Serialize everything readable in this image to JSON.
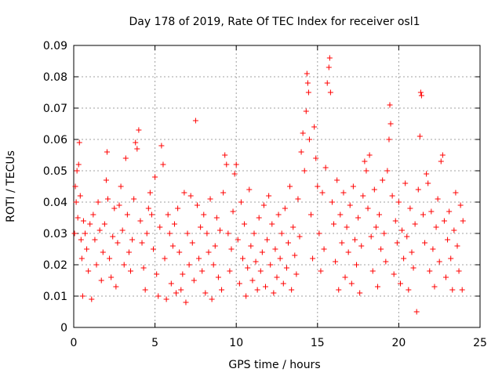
{
  "chart_data": {
    "type": "scatter",
    "title": "Day 178 of 2019, Rate Of TEC Index for receiver osl1",
    "xlabel": "GPS time / hours",
    "ylabel": "ROTI / TECUs",
    "xlim": [
      0,
      25
    ],
    "ylim": [
      0,
      0.09
    ],
    "xticks": [
      0,
      5,
      10,
      15,
      20,
      25
    ],
    "yticks": [
      0,
      0.01,
      0.02,
      0.03,
      0.04,
      0.05,
      0.06,
      0.07,
      0.08,
      0.09
    ],
    "xtick_labels": [
      "0",
      "5",
      "10",
      "15",
      "20",
      "25"
    ],
    "ytick_labels": [
      "0",
      "0.01",
      "0.02",
      "0.03",
      "0.04",
      "0.05",
      "0.06",
      "0.07",
      "0.08",
      "0.09"
    ],
    "grid": true,
    "marker": "+",
    "color": "#ff0000",
    "series": [
      {
        "points": [
          [
            0.05,
            0.03
          ],
          [
            0.1,
            0.045
          ],
          [
            0.15,
            0.04
          ],
          [
            0.2,
            0.05
          ],
          [
            0.25,
            0.035
          ],
          [
            0.3,
            0.052
          ],
          [
            0.35,
            0.059
          ],
          [
            0.4,
            0.042
          ],
          [
            0.45,
            0.028
          ],
          [
            0.5,
            0.022
          ],
          [
            0.55,
            0.01
          ],
          [
            0.6,
            0.034
          ],
          [
            0.7,
            0.03
          ],
          [
            0.8,
            0.025
          ],
          [
            0.9,
            0.018
          ],
          [
            1.0,
            0.033
          ],
          [
            1.1,
            0.009
          ],
          [
            1.2,
            0.036
          ],
          [
            1.3,
            0.028
          ],
          [
            1.4,
            0.02
          ],
          [
            1.5,
            0.04
          ],
          [
            1.6,
            0.031
          ],
          [
            1.7,
            0.015
          ],
          [
            1.8,
            0.024
          ],
          [
            1.9,
            0.033
          ],
          [
            2.0,
            0.047
          ],
          [
            2.05,
            0.056
          ],
          [
            2.1,
            0.041
          ],
          [
            2.2,
            0.022
          ],
          [
            2.3,
            0.016
          ],
          [
            2.4,
            0.029
          ],
          [
            2.5,
            0.038
          ],
          [
            2.6,
            0.013
          ],
          [
            2.7,
            0.027
          ],
          [
            2.8,
            0.039
          ],
          [
            2.9,
            0.045
          ],
          [
            3.0,
            0.031
          ],
          [
            3.1,
            0.02
          ],
          [
            3.2,
            0.054
          ],
          [
            3.3,
            0.036
          ],
          [
            3.4,
            0.024
          ],
          [
            3.5,
            0.018
          ],
          [
            3.6,
            0.028
          ],
          [
            3.7,
            0.041
          ],
          [
            3.8,
            0.059
          ],
          [
            3.9,
            0.057
          ],
          [
            4.0,
            0.063
          ],
          [
            4.1,
            0.034
          ],
          [
            4.2,
            0.027
          ],
          [
            4.3,
            0.019
          ],
          [
            4.4,
            0.012
          ],
          [
            4.5,
            0.03
          ],
          [
            4.6,
            0.038
          ],
          [
            4.7,
            0.043
          ],
          [
            4.8,
            0.036
          ],
          [
            4.9,
            0.025
          ],
          [
            5.0,
            0.048
          ],
          [
            5.1,
            0.017
          ],
          [
            5.2,
            0.01
          ],
          [
            5.3,
            0.032
          ],
          [
            5.4,
            0.058
          ],
          [
            5.5,
            0.052
          ],
          [
            5.6,
            0.022
          ],
          [
            5.7,
            0.009
          ],
          [
            5.8,
            0.036
          ],
          [
            5.9,
            0.03
          ],
          [
            6.0,
            0.014
          ],
          [
            6.1,
            0.026
          ],
          [
            6.2,
            0.033
          ],
          [
            6.3,
            0.011
          ],
          [
            6.4,
            0.038
          ],
          [
            6.5,
            0.024
          ],
          [
            6.6,
            0.012
          ],
          [
            6.7,
            0.017
          ],
          [
            6.8,
            0.043
          ],
          [
            6.9,
            0.008
          ],
          [
            7.0,
            0.03
          ],
          [
            7.1,
            0.02
          ],
          [
            7.2,
            0.042
          ],
          [
            7.3,
            0.027
          ],
          [
            7.4,
            0.015
          ],
          [
            7.5,
            0.066
          ],
          [
            7.6,
            0.039
          ],
          [
            7.7,
            0.022
          ],
          [
            7.8,
            0.032
          ],
          [
            7.9,
            0.018
          ],
          [
            8.0,
            0.036
          ],
          [
            8.1,
            0.011
          ],
          [
            8.2,
            0.03
          ],
          [
            8.3,
            0.024
          ],
          [
            8.4,
            0.041
          ],
          [
            8.5,
            0.009
          ],
          [
            8.6,
            0.02
          ],
          [
            8.7,
            0.026
          ],
          [
            8.8,
            0.035
          ],
          [
            8.9,
            0.016
          ],
          [
            9.0,
            0.031
          ],
          [
            9.1,
            0.012
          ],
          [
            9.2,
            0.043
          ],
          [
            9.3,
            0.055
          ],
          [
            9.4,
            0.052
          ],
          [
            9.5,
            0.03
          ],
          [
            9.6,
            0.018
          ],
          [
            9.7,
            0.025
          ],
          [
            9.8,
            0.037
          ],
          [
            9.9,
            0.049
          ],
          [
            10.0,
            0.052
          ],
          [
            10.1,
            0.028
          ],
          [
            10.2,
            0.014
          ],
          [
            10.3,
            0.04
          ],
          [
            10.4,
            0.022
          ],
          [
            10.5,
            0.033
          ],
          [
            10.6,
            0.01
          ],
          [
            10.7,
            0.019
          ],
          [
            10.8,
            0.044
          ],
          [
            10.9,
            0.026
          ],
          [
            11.0,
            0.015
          ],
          [
            11.1,
            0.03
          ],
          [
            11.2,
            0.021
          ],
          [
            11.3,
            0.012
          ],
          [
            11.4,
            0.035
          ],
          [
            11.5,
            0.018
          ],
          [
            11.6,
            0.024
          ],
          [
            11.7,
            0.039
          ],
          [
            11.8,
            0.013
          ],
          [
            11.9,
            0.028
          ],
          [
            12.0,
            0.042
          ],
          [
            12.1,
            0.02
          ],
          [
            12.2,
            0.033
          ],
          [
            12.3,
            0.011
          ],
          [
            12.4,
            0.025
          ],
          [
            12.5,
            0.016
          ],
          [
            12.6,
            0.036
          ],
          [
            12.7,
            0.022
          ],
          [
            12.8,
            0.03
          ],
          [
            12.9,
            0.014
          ],
          [
            13.0,
            0.038
          ],
          [
            13.1,
            0.019
          ],
          [
            13.2,
            0.027
          ],
          [
            13.3,
            0.045
          ],
          [
            13.4,
            0.012
          ],
          [
            13.5,
            0.032
          ],
          [
            13.6,
            0.023
          ],
          [
            13.7,
            0.017
          ],
          [
            13.8,
            0.041
          ],
          [
            13.9,
            0.029
          ],
          [
            14.0,
            0.056
          ],
          [
            14.1,
            0.062
          ],
          [
            14.2,
            0.05
          ],
          [
            14.3,
            0.069
          ],
          [
            14.35,
            0.081
          ],
          [
            14.4,
            0.078
          ],
          [
            14.45,
            0.075
          ],
          [
            14.5,
            0.06
          ],
          [
            14.6,
            0.036
          ],
          [
            14.7,
            0.022
          ],
          [
            14.8,
            0.064
          ],
          [
            14.9,
            0.054
          ],
          [
            15.0,
            0.045
          ],
          [
            15.1,
            0.03
          ],
          [
            15.2,
            0.018
          ],
          [
            15.3,
            0.043
          ],
          [
            15.4,
            0.025
          ],
          [
            15.5,
            0.051
          ],
          [
            15.6,
            0.078
          ],
          [
            15.7,
            0.083
          ],
          [
            15.75,
            0.086
          ],
          [
            15.8,
            0.075
          ],
          [
            15.9,
            0.04
          ],
          [
            16.0,
            0.033
          ],
          [
            16.1,
            0.021
          ],
          [
            16.2,
            0.047
          ],
          [
            16.3,
            0.012
          ],
          [
            16.4,
            0.036
          ],
          [
            16.5,
            0.027
          ],
          [
            16.6,
            0.043
          ],
          [
            16.7,
            0.016
          ],
          [
            16.8,
            0.032
          ],
          [
            16.9,
            0.024
          ],
          [
            17.0,
            0.039
          ],
          [
            17.1,
            0.014
          ],
          [
            17.2,
            0.045
          ],
          [
            17.3,
            0.028
          ],
          [
            17.4,
            0.02
          ],
          [
            17.5,
            0.035
          ],
          [
            17.6,
            0.011
          ],
          [
            17.7,
            0.026
          ],
          [
            17.8,
            0.042
          ],
          [
            17.9,
            0.053
          ],
          [
            18.0,
            0.05
          ],
          [
            18.1,
            0.038
          ],
          [
            18.2,
            0.055
          ],
          [
            18.3,
            0.029
          ],
          [
            18.4,
            0.018
          ],
          [
            18.5,
            0.044
          ],
          [
            18.6,
            0.032
          ],
          [
            18.7,
            0.013
          ],
          [
            18.8,
            0.036
          ],
          [
            18.9,
            0.025
          ],
          [
            19.0,
            0.047
          ],
          [
            19.1,
            0.03
          ],
          [
            19.2,
            0.021
          ],
          [
            19.3,
            0.05
          ],
          [
            19.4,
            0.06
          ],
          [
            19.45,
            0.071
          ],
          [
            19.5,
            0.065
          ],
          [
            19.6,
            0.042
          ],
          [
            19.7,
            0.017
          ],
          [
            19.8,
            0.034
          ],
          [
            19.9,
            0.027
          ],
          [
            20.0,
            0.04
          ],
          [
            20.1,
            0.014
          ],
          [
            20.2,
            0.031
          ],
          [
            20.3,
            0.022
          ],
          [
            20.4,
            0.046
          ],
          [
            20.5,
            0.029
          ],
          [
            20.6,
            0.012
          ],
          [
            20.7,
            0.038
          ],
          [
            20.8,
            0.024
          ],
          [
            20.9,
            0.019
          ],
          [
            21.0,
            0.033
          ],
          [
            21.1,
            0.005
          ],
          [
            21.2,
            0.044
          ],
          [
            21.3,
            0.061
          ],
          [
            21.35,
            0.075
          ],
          [
            21.4,
            0.074
          ],
          [
            21.5,
            0.036
          ],
          [
            21.6,
            0.027
          ],
          [
            21.7,
            0.049
          ],
          [
            21.8,
            0.046
          ],
          [
            21.9,
            0.018
          ],
          [
            22.0,
            0.037
          ],
          [
            22.1,
            0.025
          ],
          [
            22.2,
            0.013
          ],
          [
            22.3,
            0.032
          ],
          [
            22.4,
            0.041
          ],
          [
            22.5,
            0.021
          ],
          [
            22.6,
            0.053
          ],
          [
            22.7,
            0.055
          ],
          [
            22.8,
            0.034
          ],
          [
            22.9,
            0.016
          ],
          [
            23.0,
            0.028
          ],
          [
            23.1,
            0.037
          ],
          [
            23.2,
            0.022
          ],
          [
            23.3,
            0.012
          ],
          [
            23.4,
            0.031
          ],
          [
            23.5,
            0.043
          ],
          [
            23.6,
            0.026
          ],
          [
            23.7,
            0.018
          ],
          [
            23.8,
            0.039
          ],
          [
            23.9,
            0.012
          ],
          [
            23.95,
            0.034
          ]
        ]
      }
    ]
  }
}
